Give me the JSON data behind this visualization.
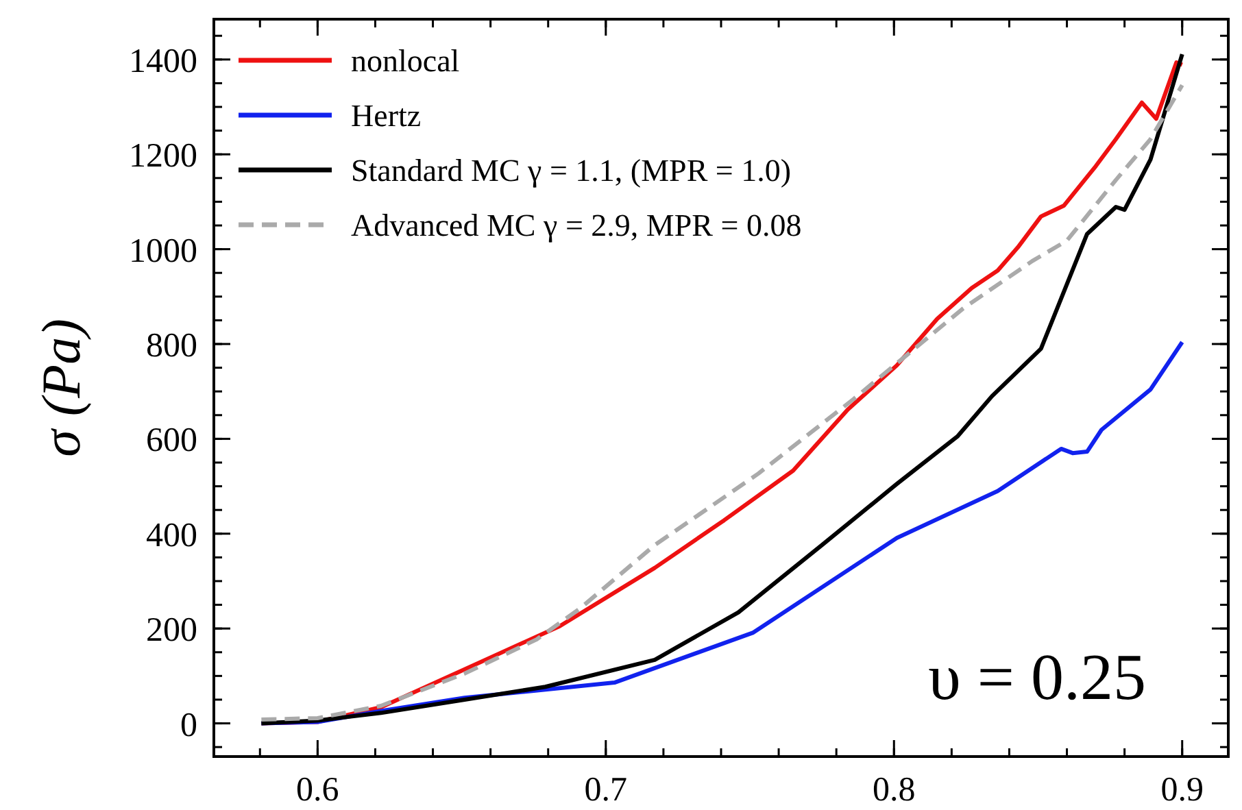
{
  "chart_data": {
    "type": "line",
    "ylabel": "σ (Pa)",
    "xlim": [
      0.564,
      0.916
    ],
    "ylim": [
      -70,
      1485
    ],
    "xticks": [
      0.6,
      0.7,
      0.8,
      0.9
    ],
    "yticks": [
      0,
      200,
      400,
      600,
      800,
      1000,
      1200,
      1400
    ],
    "grid": false,
    "legend": "top left",
    "marker": "none",
    "annotations": [
      "υ = 0.25"
    ],
    "series": [
      {
        "name": "nonlocal",
        "color": "#ee1111",
        "line_style": "solid",
        "x": [
          0.5805,
          0.6,
          0.622,
          0.651,
          0.684,
          0.717,
          0.741,
          0.765,
          0.784,
          0.801,
          0.815,
          0.827,
          0.836,
          0.843,
          0.851,
          0.859,
          0.87,
          0.877,
          0.886,
          0.891,
          0.896,
          0.898,
          0.9
        ],
        "values": [
          0,
          3,
          34,
          114,
          205,
          328,
          428,
          533,
          662,
          755,
          853,
          918,
          955,
          1004,
          1069,
          1092,
          1175,
          1232,
          1309,
          1275,
          1360,
          1394,
          1389
        ]
      },
      {
        "name": "Hertz",
        "color": "#1122ee",
        "line_style": "solid",
        "x": [
          0.5805,
          0.6,
          0.622,
          0.651,
          0.703,
          0.751,
          0.801,
          0.836,
          0.858,
          0.862,
          0.867,
          0.872,
          0.889,
          0.9
        ],
        "values": [
          0,
          3,
          26,
          54,
          86,
          191,
          391,
          490,
          579,
          570,
          573,
          619,
          704,
          804
        ]
      },
      {
        "name": "Standard MC   γ = 1.1, (MPR = 1.0)",
        "color": "#000000",
        "line_style": "solid",
        "x": [
          0.5805,
          0.6,
          0.622,
          0.651,
          0.679,
          0.717,
          0.746,
          0.775,
          0.801,
          0.822,
          0.834,
          0.851,
          0.867,
          0.877,
          0.88,
          0.889,
          0.9
        ],
        "values": [
          0,
          6,
          22,
          50,
          77,
          134,
          234,
          376,
          505,
          605,
          690,
          790,
          1032,
          1089,
          1083,
          1189,
          1411
        ]
      },
      {
        "name": "Advanced MC γ = 2.9, MPR = 0.08",
        "color": "#aaaaaa",
        "line_style": "dashed",
        "x": [
          0.5805,
          0.6,
          0.622,
          0.651,
          0.676,
          0.691,
          0.717,
          0.753,
          0.786,
          0.824,
          0.848,
          0.86,
          0.877,
          0.889,
          0.9
        ],
        "values": [
          8,
          11,
          37,
          105,
          177,
          242,
          376,
          527,
          684,
          875,
          975,
          1018,
          1146,
          1232,
          1346
        ]
      }
    ]
  }
}
